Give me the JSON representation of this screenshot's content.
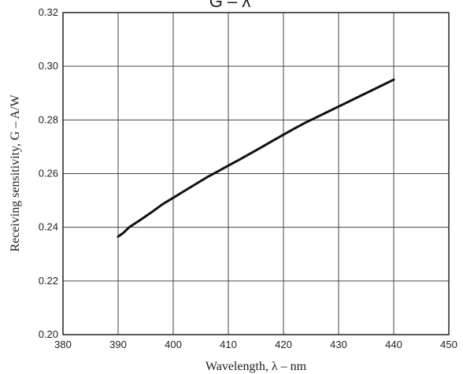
{
  "chart_data": {
    "type": "line",
    "title": "G – λ",
    "xlabel": "Wavelength, λ – nm",
    "ylabel": "Receiving sensitivity, G – A/W",
    "xlim": [
      380,
      450
    ],
    "ylim": [
      0.2,
      0.32
    ],
    "xticks": [
      380,
      390,
      400,
      410,
      420,
      430,
      440,
      450
    ],
    "yticks": [
      0.2,
      0.22,
      0.24,
      0.26,
      0.28,
      0.3,
      0.32
    ],
    "xtick_labels": [
      "380",
      "390",
      "400",
      "410",
      "420",
      "430",
      "440",
      "450"
    ],
    "ytick_labels": [
      "0.20",
      "0.22",
      "0.24",
      "0.26",
      "0.28",
      "0.30",
      "0.32"
    ],
    "grid": true,
    "series": [
      {
        "x": [
          390,
          391,
          392,
          394,
          396,
          398,
          400,
          402,
          404,
          406,
          408,
          410,
          412,
          414,
          416,
          418,
          420,
          422,
          424,
          426,
          428,
          430,
          432,
          434,
          436,
          438,
          440
        ],
        "y": [
          0.2365,
          0.238,
          0.24,
          0.2427,
          0.2455,
          0.2485,
          0.251,
          0.2535,
          0.256,
          0.2585,
          0.2607,
          0.263,
          0.2652,
          0.2675,
          0.2698,
          0.2722,
          0.2745,
          0.2768,
          0.279,
          0.281,
          0.283,
          0.285,
          0.287,
          0.289,
          0.291,
          0.293,
          0.295
        ]
      }
    ],
    "colors": {
      "line": "#111111",
      "grid": "#444444",
      "frame": "#222222"
    }
  }
}
